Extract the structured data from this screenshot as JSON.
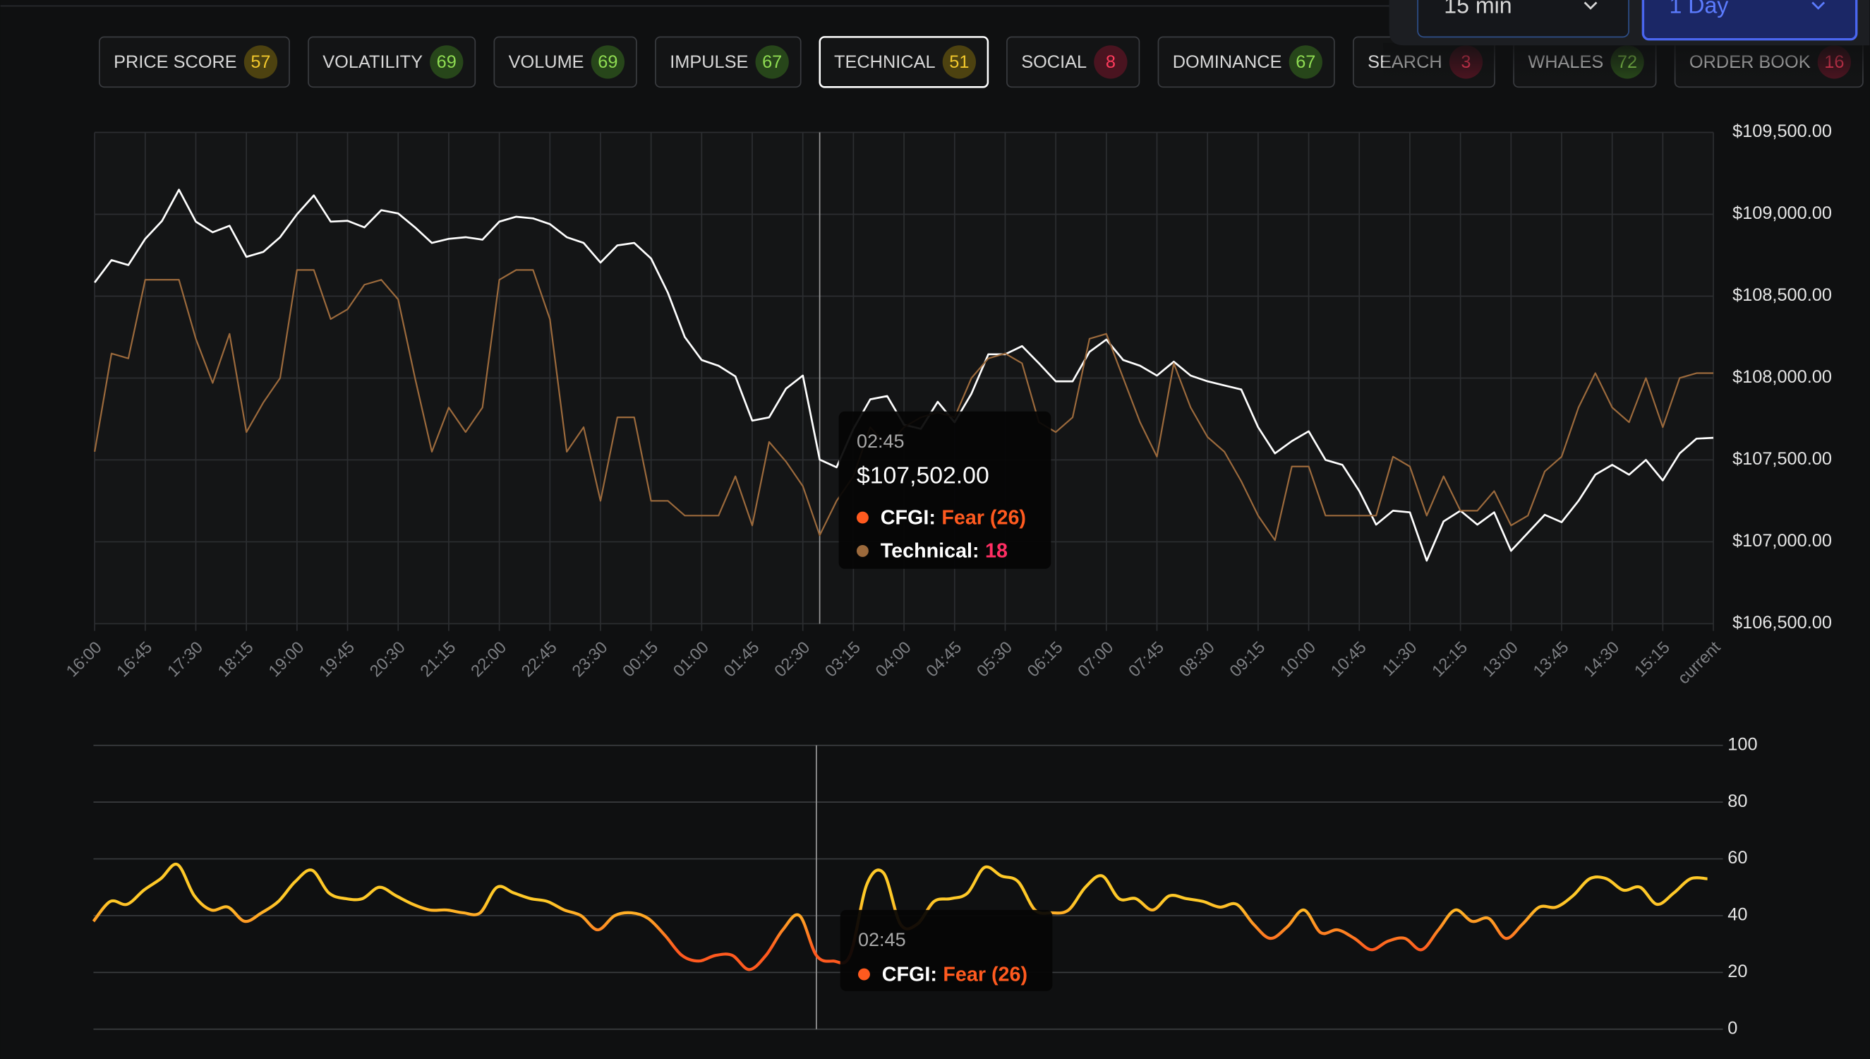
{
  "tabs": [
    {
      "label": "PRICE SCORE",
      "score": 57
    },
    {
      "label": "VOLATILITY",
      "score": 69
    },
    {
      "label": "VOLUME",
      "score": 69
    },
    {
      "label": "IMPULSE",
      "score": 67
    },
    {
      "label": "TECHNICAL",
      "score": 51
    },
    {
      "label": "SOCIAL",
      "score": 8
    },
    {
      "label": "DOMINANCE",
      "score": 67
    },
    {
      "label": "SEARCH",
      "score": 3
    },
    {
      "label": "WHALES",
      "score": 72
    },
    {
      "label": "ORDER BOOK",
      "score": 16
    }
  ],
  "active_tab": 4,
  "dropdowns": [
    "15 min",
    "1 Day"
  ],
  "active_dropdown": 1,
  "chart_data": [
    {
      "type": "line",
      "categories": [
        "16:00",
        null,
        null,
        "16:45",
        null,
        null,
        "17:30",
        null,
        null,
        "18:15",
        null,
        null,
        "19:00",
        null,
        null,
        "19:45",
        null,
        null,
        "20:30",
        null,
        null,
        "21:15",
        null,
        null,
        "22:00",
        null,
        null,
        "22:45",
        null,
        null,
        "23:30",
        null,
        null,
        "00:15",
        null,
        null,
        "01:00",
        null,
        null,
        "01:45",
        null,
        null,
        "02:30",
        null,
        null,
        "03:15",
        null,
        null,
        "04:00",
        null,
        null,
        "04:45",
        null,
        null,
        "05:30",
        null,
        null,
        "06:15",
        null,
        null,
        "07:00",
        null,
        null,
        "07:45",
        null,
        null,
        "08:30",
        null,
        null,
        "09:15",
        null,
        null,
        "10:00",
        null,
        null,
        "10:45",
        null,
        null,
        "11:30",
        null,
        null,
        "12:15",
        null,
        null,
        "13:00",
        null,
        null,
        "13:45",
        null,
        null,
        "14:30",
        null,
        null,
        "15:15",
        null,
        null,
        "current"
      ],
      "series": [
        {
          "color": "#ffffff",
          "values": [
            108583,
            108720,
            108690,
            108850,
            108960,
            109150,
            108955,
            108890,
            108930,
            108740,
            108770,
            108860,
            109000,
            109115,
            108955,
            108960,
            108920,
            109025,
            109005,
            108920,
            108825,
            108850,
            108860,
            108845,
            108955,
            108985,
            108975,
            108940,
            108860,
            108825,
            108705,
            108810,
            108825,
            108730,
            108520,
            108250,
            108110,
            108075,
            108010,
            107740,
            107760,
            107935,
            108015,
            107502,
            107455,
            107690,
            107870,
            107890,
            107715,
            107690,
            107855,
            107730,
            107905,
            108145,
            108145,
            108195,
            108090,
            107980,
            107980,
            108160,
            108235,
            108110,
            108075,
            108015,
            108100,
            108015,
            107980,
            107955,
            107930,
            107700,
            107540,
            107615,
            107675,
            107500,
            107470,
            107310,
            107105,
            107190,
            107180,
            106885,
            107125,
            107190,
            107105,
            107180,
            106945,
            107055,
            107165,
            107120,
            107250,
            107410,
            107470,
            107410,
            107500,
            107375,
            107540,
            107630,
            107635
          ]
        },
        {
          "color": "#9c6a3c",
          "axis": "y2",
          "values": [
            35,
            55,
            54,
            70,
            70,
            70,
            58,
            49,
            59,
            39,
            45,
            50,
            72,
            72,
            62,
            64,
            69,
            70,
            66,
            50,
            35,
            44,
            39,
            44,
            70,
            72,
            72,
            62,
            35,
            40,
            25,
            42,
            42,
            25,
            25,
            22,
            22,
            22,
            30,
            20,
            37,
            33,
            28,
            18,
            25,
            30,
            40,
            36,
            40,
            42,
            43,
            42,
            50,
            54,
            55,
            53,
            41,
            39,
            42,
            58,
            59,
            50,
            41,
            34,
            53,
            44,
            38,
            35,
            29,
            22,
            17,
            32,
            32,
            22,
            22,
            22,
            22,
            34,
            32,
            22,
            30,
            23,
            23,
            27,
            20,
            22,
            31,
            34,
            44,
            51,
            44,
            41,
            50,
            40,
            50,
            51,
            51
          ]
        }
      ],
      "ylim": [
        106500,
        109500
      ],
      "yticks": [
        {
          "value": 106500,
          "label": "$106,500.00"
        },
        {
          "value": 107000,
          "label": "$107,000.00"
        },
        {
          "value": 107500,
          "label": "$107,500.00"
        },
        {
          "value": 108000,
          "label": "$108,000.00"
        },
        {
          "value": 108500,
          "label": "$108,500.00"
        },
        {
          "value": 109000,
          "label": "$109,000.00"
        },
        {
          "value": 109500,
          "label": "$109,500.00"
        }
      ],
      "y2lim": [
        0,
        100
      ],
      "grid": true,
      "tooltip": {
        "time": "02:45",
        "price": "$107,502.00",
        "items": [
          {
            "name": "CFGI:",
            "value": "Fear (26)",
            "color": "#ff5a1f"
          },
          {
            "name": "Technical:",
            "value": "18",
            "color": "#9c6a3c",
            "value_color": "#ff2e63"
          }
        ]
      }
    },
    {
      "type": "line",
      "series": [
        {
          "color": "#ffc928",
          "low_color": "#ff5a1f",
          "values": [
            38,
            45,
            44,
            49,
            53,
            58,
            47,
            42,
            43,
            38,
            41,
            45,
            52,
            56,
            48,
            46,
            46,
            50,
            47,
            44,
            42,
            42,
            41,
            41,
            50,
            48,
            46,
            45,
            42,
            40,
            35,
            40,
            41,
            39,
            33,
            26,
            24,
            26,
            26,
            21,
            26,
            35,
            40,
            26,
            24,
            26,
            51,
            55,
            37,
            37,
            45,
            46,
            48,
            57,
            54,
            52,
            42,
            41,
            42,
            50,
            54,
            46,
            46,
            42,
            47,
            46,
            45,
            43,
            44,
            37,
            32,
            36,
            42,
            34,
            35,
            32,
            28,
            31,
            32,
            28,
            35,
            42,
            38,
            39,
            32,
            37,
            43,
            43,
            47,
            53,
            53,
            49,
            50,
            44,
            48,
            53,
            53
          ]
        }
      ],
      "ylim": [
        0,
        100
      ],
      "yticks": [
        0,
        20,
        40,
        60,
        80,
        100
      ],
      "grid": true,
      "tooltip": {
        "time": "02:45",
        "items": [
          {
            "name": "CFGI:",
            "value": "Fear (26)",
            "color": "#ff5a1f"
          }
        ]
      }
    }
  ]
}
